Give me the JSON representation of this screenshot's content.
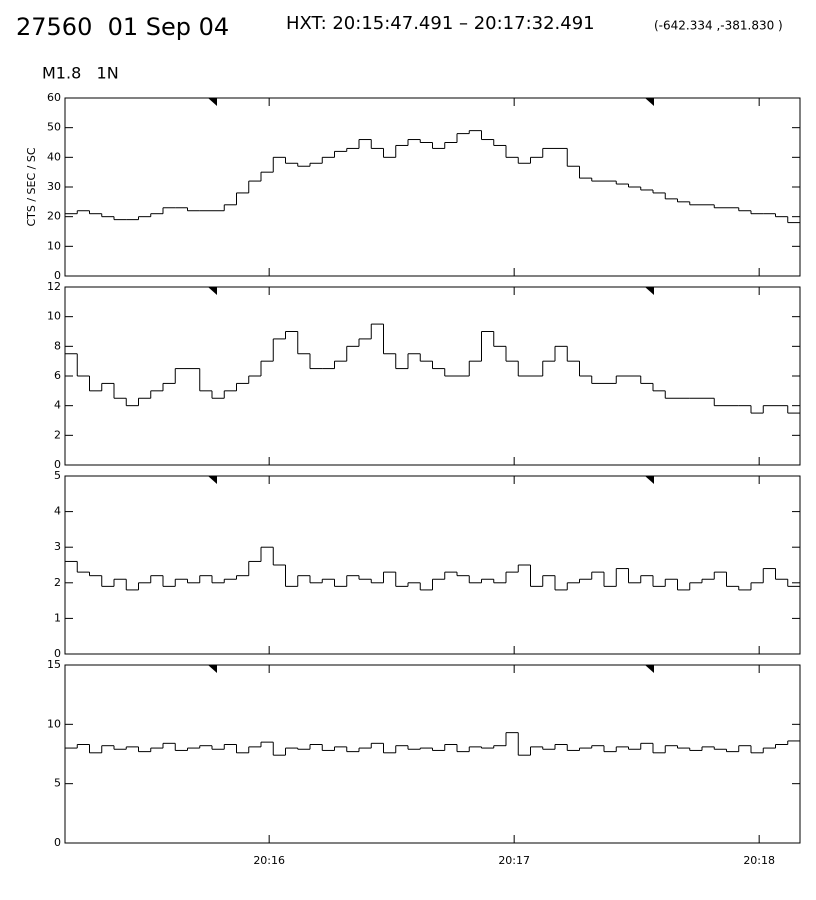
{
  "header": {
    "title": "27560  01 Sep 04",
    "hxt": "HXT: 20:15:47.491 – 20:17:32.491",
    "coords": "(-642.334 ,-381.830 )",
    "subtitle": "M1.8   1N"
  },
  "chart_data": [
    {
      "type": "line",
      "drawstyle": "steps",
      "ylabel": "CTS / SEC / SC",
      "color": "#000000",
      "x": [
        72910,
        72913,
        72916,
        72919,
        72922,
        72925,
        72928,
        72931,
        72934,
        72937,
        72940,
        72943,
        72946,
        72949,
        72952,
        72955,
        72958,
        72961,
        72964,
        72967,
        72970,
        72973,
        72976,
        72979,
        72982,
        72985,
        72988,
        72991,
        72994,
        72997,
        73000,
        73003,
        73006,
        73009,
        73012,
        73015,
        73018,
        73021,
        73024,
        73027,
        73030,
        73033,
        73036,
        73039,
        73042,
        73045,
        73048,
        73051,
        73054,
        73057,
        73060,
        73063,
        73066,
        73069,
        73072,
        73075,
        73078,
        73081,
        73084,
        73087
      ],
      "values": [
        21,
        22,
        21,
        20,
        19,
        19,
        20,
        21,
        23,
        23,
        22,
        22,
        22,
        24,
        28,
        32,
        35,
        40,
        38,
        37,
        38,
        40,
        42,
        43,
        46,
        43,
        40,
        44,
        46,
        45,
        43,
        45,
        48,
        49,
        46,
        44,
        40,
        38,
        40,
        43,
        43,
        37,
        33,
        32,
        32,
        31,
        30,
        29,
        28,
        26,
        25,
        24,
        24,
        23,
        23,
        22,
        21,
        21,
        20,
        18
      ],
      "xlim": [
        72910,
        73090
      ],
      "ylim": [
        0,
        60
      ],
      "yticks": [
        0,
        10,
        20,
        30,
        40,
        50,
        60
      ]
    },
    {
      "type": "line",
      "drawstyle": "steps",
      "color": "#000000",
      "x": [
        72910,
        72913,
        72916,
        72919,
        72922,
        72925,
        72928,
        72931,
        72934,
        72937,
        72940,
        72943,
        72946,
        72949,
        72952,
        72955,
        72958,
        72961,
        72964,
        72967,
        72970,
        72973,
        72976,
        72979,
        72982,
        72985,
        72988,
        72991,
        72994,
        72997,
        73000,
        73003,
        73006,
        73009,
        73012,
        73015,
        73018,
        73021,
        73024,
        73027,
        73030,
        73033,
        73036,
        73039,
        73042,
        73045,
        73048,
        73051,
        73054,
        73057,
        73060,
        73063,
        73066,
        73069,
        73072,
        73075,
        73078,
        73081,
        73084,
        73087
      ],
      "values": [
        7.5,
        6,
        5,
        5.5,
        4.5,
        4,
        4.5,
        5,
        5.5,
        6.5,
        6.5,
        5,
        4.5,
        5,
        5.5,
        6,
        7,
        8.5,
        9,
        7.5,
        6.5,
        6.5,
        7,
        8,
        8.5,
        9.5,
        7.5,
        6.5,
        7.5,
        7,
        6.5,
        6,
        6,
        7,
        9,
        8,
        7,
        6,
        6,
        7,
        8,
        7,
        6,
        5.5,
        5.5,
        6,
        6,
        5.5,
        5,
        4.5,
        4.5,
        4.5,
        4.5,
        4,
        4,
        4,
        3.5,
        4,
        4,
        3.5
      ],
      "xlim": [
        72910,
        73090
      ],
      "ylim": [
        0,
        12
      ],
      "yticks": [
        0,
        2,
        4,
        6,
        8,
        10,
        12
      ]
    },
    {
      "type": "line",
      "drawstyle": "steps",
      "color": "#000000",
      "x": [
        72910,
        72913,
        72916,
        72919,
        72922,
        72925,
        72928,
        72931,
        72934,
        72937,
        72940,
        72943,
        72946,
        72949,
        72952,
        72955,
        72958,
        72961,
        72964,
        72967,
        72970,
        72973,
        72976,
        72979,
        72982,
        72985,
        72988,
        72991,
        72994,
        72997,
        73000,
        73003,
        73006,
        73009,
        73012,
        73015,
        73018,
        73021,
        73024,
        73027,
        73030,
        73033,
        73036,
        73039,
        73042,
        73045,
        73048,
        73051,
        73054,
        73057,
        73060,
        73063,
        73066,
        73069,
        73072,
        73075,
        73078,
        73081,
        73084,
        73087
      ],
      "values": [
        2.6,
        2.3,
        2.2,
        1.9,
        2.1,
        1.8,
        2.0,
        2.2,
        1.9,
        2.1,
        2.0,
        2.2,
        2.0,
        2.1,
        2.2,
        2.6,
        3.0,
        2.5,
        1.9,
        2.2,
        2.0,
        2.1,
        1.9,
        2.2,
        2.1,
        2.0,
        2.3,
        1.9,
        2.0,
        1.8,
        2.1,
        2.3,
        2.2,
        2.0,
        2.1,
        2.0,
        2.3,
        2.5,
        1.9,
        2.2,
        1.8,
        2.0,
        2.1,
        2.3,
        1.9,
        2.4,
        2.0,
        2.2,
        1.9,
        2.1,
        1.8,
        2.0,
        2.1,
        2.3,
        1.9,
        1.8,
        2.0,
        2.4,
        2.1,
        1.9
      ],
      "xlim": [
        72910,
        73090
      ],
      "ylim": [
        0,
        5
      ],
      "yticks": [
        0,
        1,
        2,
        3,
        4,
        5
      ]
    },
    {
      "type": "line",
      "drawstyle": "steps",
      "color": "#000000",
      "x": [
        72910,
        72913,
        72916,
        72919,
        72922,
        72925,
        72928,
        72931,
        72934,
        72937,
        72940,
        72943,
        72946,
        72949,
        72952,
        72955,
        72958,
        72961,
        72964,
        72967,
        72970,
        72973,
        72976,
        72979,
        72982,
        72985,
        72988,
        72991,
        72994,
        72997,
        73000,
        73003,
        73006,
        73009,
        73012,
        73015,
        73018,
        73021,
        73024,
        73027,
        73030,
        73033,
        73036,
        73039,
        73042,
        73045,
        73048,
        73051,
        73054,
        73057,
        73060,
        73063,
        73066,
        73069,
        73072,
        73075,
        73078,
        73081,
        73084,
        73087
      ],
      "values": [
        8,
        8.3,
        7.6,
        8.2,
        7.9,
        8.1,
        7.7,
        8.0,
        8.4,
        7.8,
        8.0,
        8.2,
        7.9,
        8.3,
        7.6,
        8.1,
        8.5,
        7.4,
        8.0,
        7.9,
        8.3,
        7.8,
        8.1,
        7.7,
        8.0,
        8.4,
        7.6,
        8.2,
        7.9,
        8.0,
        7.8,
        8.3,
        7.7,
        8.1,
        8.0,
        8.2,
        9.3,
        7.4,
        8.1,
        7.9,
        8.3,
        7.8,
        8.0,
        8.2,
        7.7,
        8.1,
        7.9,
        8.4,
        7.6,
        8.2,
        8.0,
        7.8,
        8.1,
        7.9,
        7.7,
        8.2,
        7.6,
        8.0,
        8.3,
        8.6
      ],
      "xlim": [
        72910,
        73090
      ],
      "ylim": [
        0,
        15
      ],
      "yticks": [
        0,
        5,
        10,
        15
      ],
      "xticks": [
        {
          "value": 72960,
          "label": "20:16"
        },
        {
          "value": 73020,
          "label": "20:17"
        },
        {
          "value": 73080,
          "label": "20:18"
        }
      ]
    }
  ]
}
